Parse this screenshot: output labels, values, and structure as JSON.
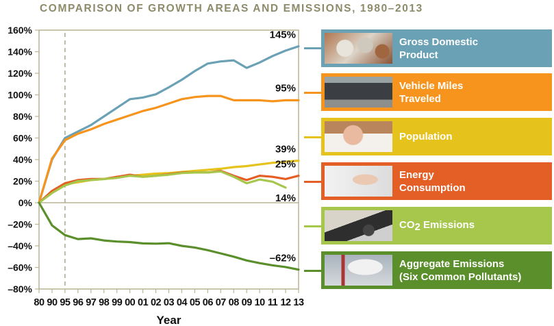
{
  "chart_data": {
    "type": "line",
    "title": "COMPARISON OF GROWTH AREAS AND EMISSIONS, 1980–2013",
    "xlabel": "Year",
    "ylabel": "",
    "categories": [
      "80",
      "90",
      "95",
      "96",
      "97",
      "98",
      "99",
      "00",
      "01",
      "02",
      "03",
      "04",
      "05",
      "06",
      "07",
      "08",
      "09",
      "10",
      "11",
      "12",
      "13"
    ],
    "ylim": [
      -80,
      160
    ],
    "yticks": [
      160,
      140,
      120,
      100,
      80,
      60,
      40,
      20,
      0,
      -20,
      -40,
      -60,
      -80
    ],
    "ytick_labels": [
      "160%",
      "140%",
      "120%",
      "100%",
      "80%",
      "60%",
      "40%",
      "20%",
      "0%",
      "–20%",
      "–40%",
      "–60%",
      "–80%"
    ],
    "reference_line_at": "95",
    "grid": false,
    "legend_placement": "right",
    "series": [
      {
        "name": "Gross Domestic Product",
        "color": "#6aa1b5",
        "end_label": "145%",
        "values": [
          0,
          40,
          60,
          66,
          72,
          80,
          88,
          96,
          97.5,
          100.5,
          107,
          114,
          122,
          129,
          131,
          132,
          125,
          130,
          136,
          141,
          145
        ]
      },
      {
        "name": "Vehicle Miles Traveled",
        "color": "#f7941d",
        "end_label": "95%",
        "values": [
          0,
          41,
          58,
          64,
          68,
          73,
          77,
          81,
          85,
          88,
          92,
          96,
          98,
          99,
          99,
          95,
          95,
          95,
          94,
          95,
          95
        ]
      },
      {
        "name": "Population",
        "color": "#e5c21c",
        "end_label": "39%",
        "values": [
          0,
          10,
          17,
          19,
          21,
          22,
          24,
          25,
          26,
          27,
          27.5,
          28.5,
          29.5,
          30.5,
          31.5,
          33,
          34,
          35.5,
          37,
          38,
          39
        ]
      },
      {
        "name": "Energy Consumption",
        "color": "#e35f26",
        "end_label": "25%",
        "values": [
          0,
          11,
          18,
          21,
          22,
          22,
          24,
          26,
          24,
          25,
          26.5,
          28,
          28,
          28,
          29.5,
          25,
          21,
          25,
          24,
          22,
          25
        ]
      },
      {
        "name": "CO2 Emissions",
        "color": "#a6c74b",
        "end_label": "14%",
        "values": [
          0,
          9,
          16,
          20,
          21,
          22,
          23,
          25,
          24,
          25,
          26,
          27.5,
          28,
          28,
          29,
          24,
          18,
          21.5,
          19.5,
          14,
          null
        ]
      },
      {
        "name": "Aggregate Emissions (Six Common Pollutants)",
        "color": "#5a8f2b",
        "end_label": "–62%",
        "values": [
          0,
          -21,
          -30,
          -33.7,
          -33,
          -35,
          -36,
          -36.5,
          -37.7,
          -38,
          -37.5,
          -40,
          -41.5,
          -44,
          -47,
          -50,
          -53.5,
          -56,
          -58,
          -59.6,
          -62
        ]
      }
    ]
  },
  "legend": [
    {
      "line1": "Gross Domestic",
      "line2": "Product",
      "color": "#6aa1b5",
      "photo": "coins"
    },
    {
      "line1": "Vehicle Miles",
      "line2": "Traveled",
      "color": "#f7941d",
      "photo": "traffic-jam"
    },
    {
      "line1": "Population",
      "line2": "",
      "color": "#e5c21c",
      "photo": "baby"
    },
    {
      "line1": "Energy",
      "line2": "Consumption",
      "color": "#e35f26",
      "photo": "plug"
    },
    {
      "line1": "CO",
      "sub": "2",
      "line1b": " Emissions",
      "line2": "",
      "color": "#a6c74b",
      "photo": "exhaust-pipe"
    },
    {
      "line1": "Aggregate Emissions",
      "line2": "(Six Common Pollutants)",
      "color": "#5a8f2b",
      "photo": "smokestacks"
    }
  ],
  "colors": {
    "title": "#8d8b69",
    "axis": "#b9b494"
  }
}
